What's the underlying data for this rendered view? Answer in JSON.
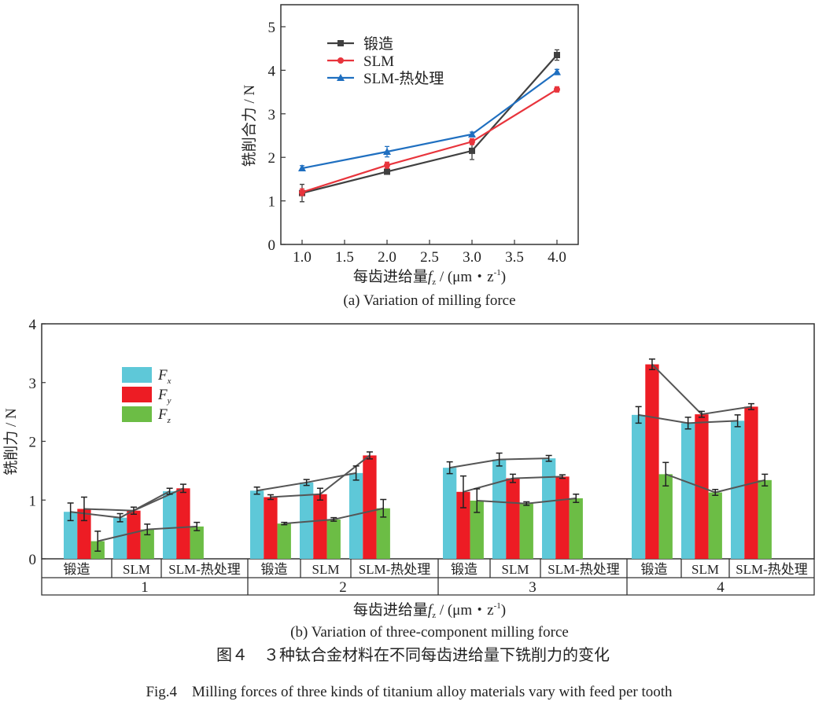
{
  "chart_data": [
    {
      "type": "line",
      "title": "(a) Variation of milling force",
      "xlabel": "每齿进给量f_z / (μm・z⁻¹)",
      "xlabel_parts": {
        "prefix": "每齿进给量",
        "var": "f",
        "sub": "z",
        "unit": " / (μm・z",
        "sup": "-1",
        "close": ")"
      },
      "ylabel": "铣削合力 / N",
      "xlim": [
        0.75,
        4.25
      ],
      "ylim": [
        0,
        5.5
      ],
      "xticks": [
        "1.0",
        "1.5",
        "2.0",
        "2.5",
        "3.0",
        "3.5",
        "4.0"
      ],
      "yticks": [
        "0",
        "1",
        "2",
        "3",
        "4",
        "5"
      ],
      "x": [
        1.0,
        2.0,
        3.0,
        4.0
      ],
      "legend_position": "top-left",
      "grid": false,
      "series": [
        {
          "name": "锻造",
          "color": "#404040",
          "marker": "square",
          "values": [
            1.18,
            1.67,
            2.15,
            4.35
          ],
          "errors": [
            0.2,
            0.03,
            0.2,
            0.12
          ]
        },
        {
          "name": "SLM",
          "color": "#e8343c",
          "marker": "circle",
          "values": [
            1.2,
            1.82,
            2.36,
            3.56
          ],
          "errors": [
            0.08,
            0.07,
            0.07,
            0.06
          ]
        },
        {
          "name": "SLM-热处理",
          "color": "#1f6fc0",
          "marker": "triangle",
          "values": [
            1.75,
            2.13,
            2.53,
            3.96
          ],
          "errors": [
            0.06,
            0.12,
            0.05,
            0.06
          ]
        }
      ]
    },
    {
      "type": "bar",
      "title": "(b) Variation of three-component milling force",
      "xlabel": "每齿进给量f_z / (μm・z⁻¹)",
      "ylabel": "铣削力 / N",
      "ylim": [
        0,
        4
      ],
      "yticks": [
        "0",
        "1",
        "2",
        "3",
        "4"
      ],
      "groups": [
        "1",
        "2",
        "3",
        "4"
      ],
      "materials": [
        "锻造",
        "SLM",
        "SLM-热处理"
      ],
      "legend_position": "top-left",
      "grid": false,
      "series": [
        {
          "name": "F",
          "sub": "x",
          "color": "#5ec8d8",
          "values": [
            [
              0.8,
              0.7,
              1.15
            ],
            [
              1.16,
              1.3,
              1.46
            ],
            [
              1.55,
              1.69,
              1.71
            ],
            [
              2.45,
              2.31,
              2.35
            ]
          ],
          "errors": [
            [
              0.15,
              0.07,
              0.05
            ],
            [
              0.06,
              0.05,
              0.12
            ],
            [
              0.1,
              0.11,
              0.05
            ],
            [
              0.14,
              0.1,
              0.1
            ]
          ]
        },
        {
          "name": "F",
          "sub": "y",
          "color": "#ed1c24",
          "values": [
            [
              0.85,
              0.82,
              1.2
            ],
            [
              1.05,
              1.1,
              1.76
            ],
            [
              1.14,
              1.37,
              1.4
            ],
            [
              3.31,
              2.46,
              2.59
            ]
          ],
          "errors": [
            [
              0.2,
              0.06,
              0.07
            ],
            [
              0.04,
              0.1,
              0.06
            ],
            [
              0.27,
              0.07,
              0.03
            ],
            [
              0.09,
              0.05,
              0.05
            ]
          ]
        },
        {
          "name": "F",
          "sub": "z",
          "color": "#6cbd45",
          "values": [
            [
              0.3,
              0.5,
              0.55
            ],
            [
              0.6,
              0.67,
              0.86
            ],
            [
              0.99,
              0.94,
              1.03
            ],
            [
              1.44,
              1.13,
              1.34
            ]
          ],
          "errors": [
            [
              0.17,
              0.09,
              0.07
            ],
            [
              0.02,
              0.03,
              0.15
            ],
            [
              0.2,
              0.03,
              0.07
            ],
            [
              0.2,
              0.05,
              0.1
            ]
          ]
        }
      ]
    }
  ],
  "figure_caption_cn": "图４　３种钛合金材料在不同每齿进给量下铣削力的变化",
  "figure_caption_en": "Fig.4　Milling forces of three kinds of titanium alloy materials vary with feed per tooth"
}
